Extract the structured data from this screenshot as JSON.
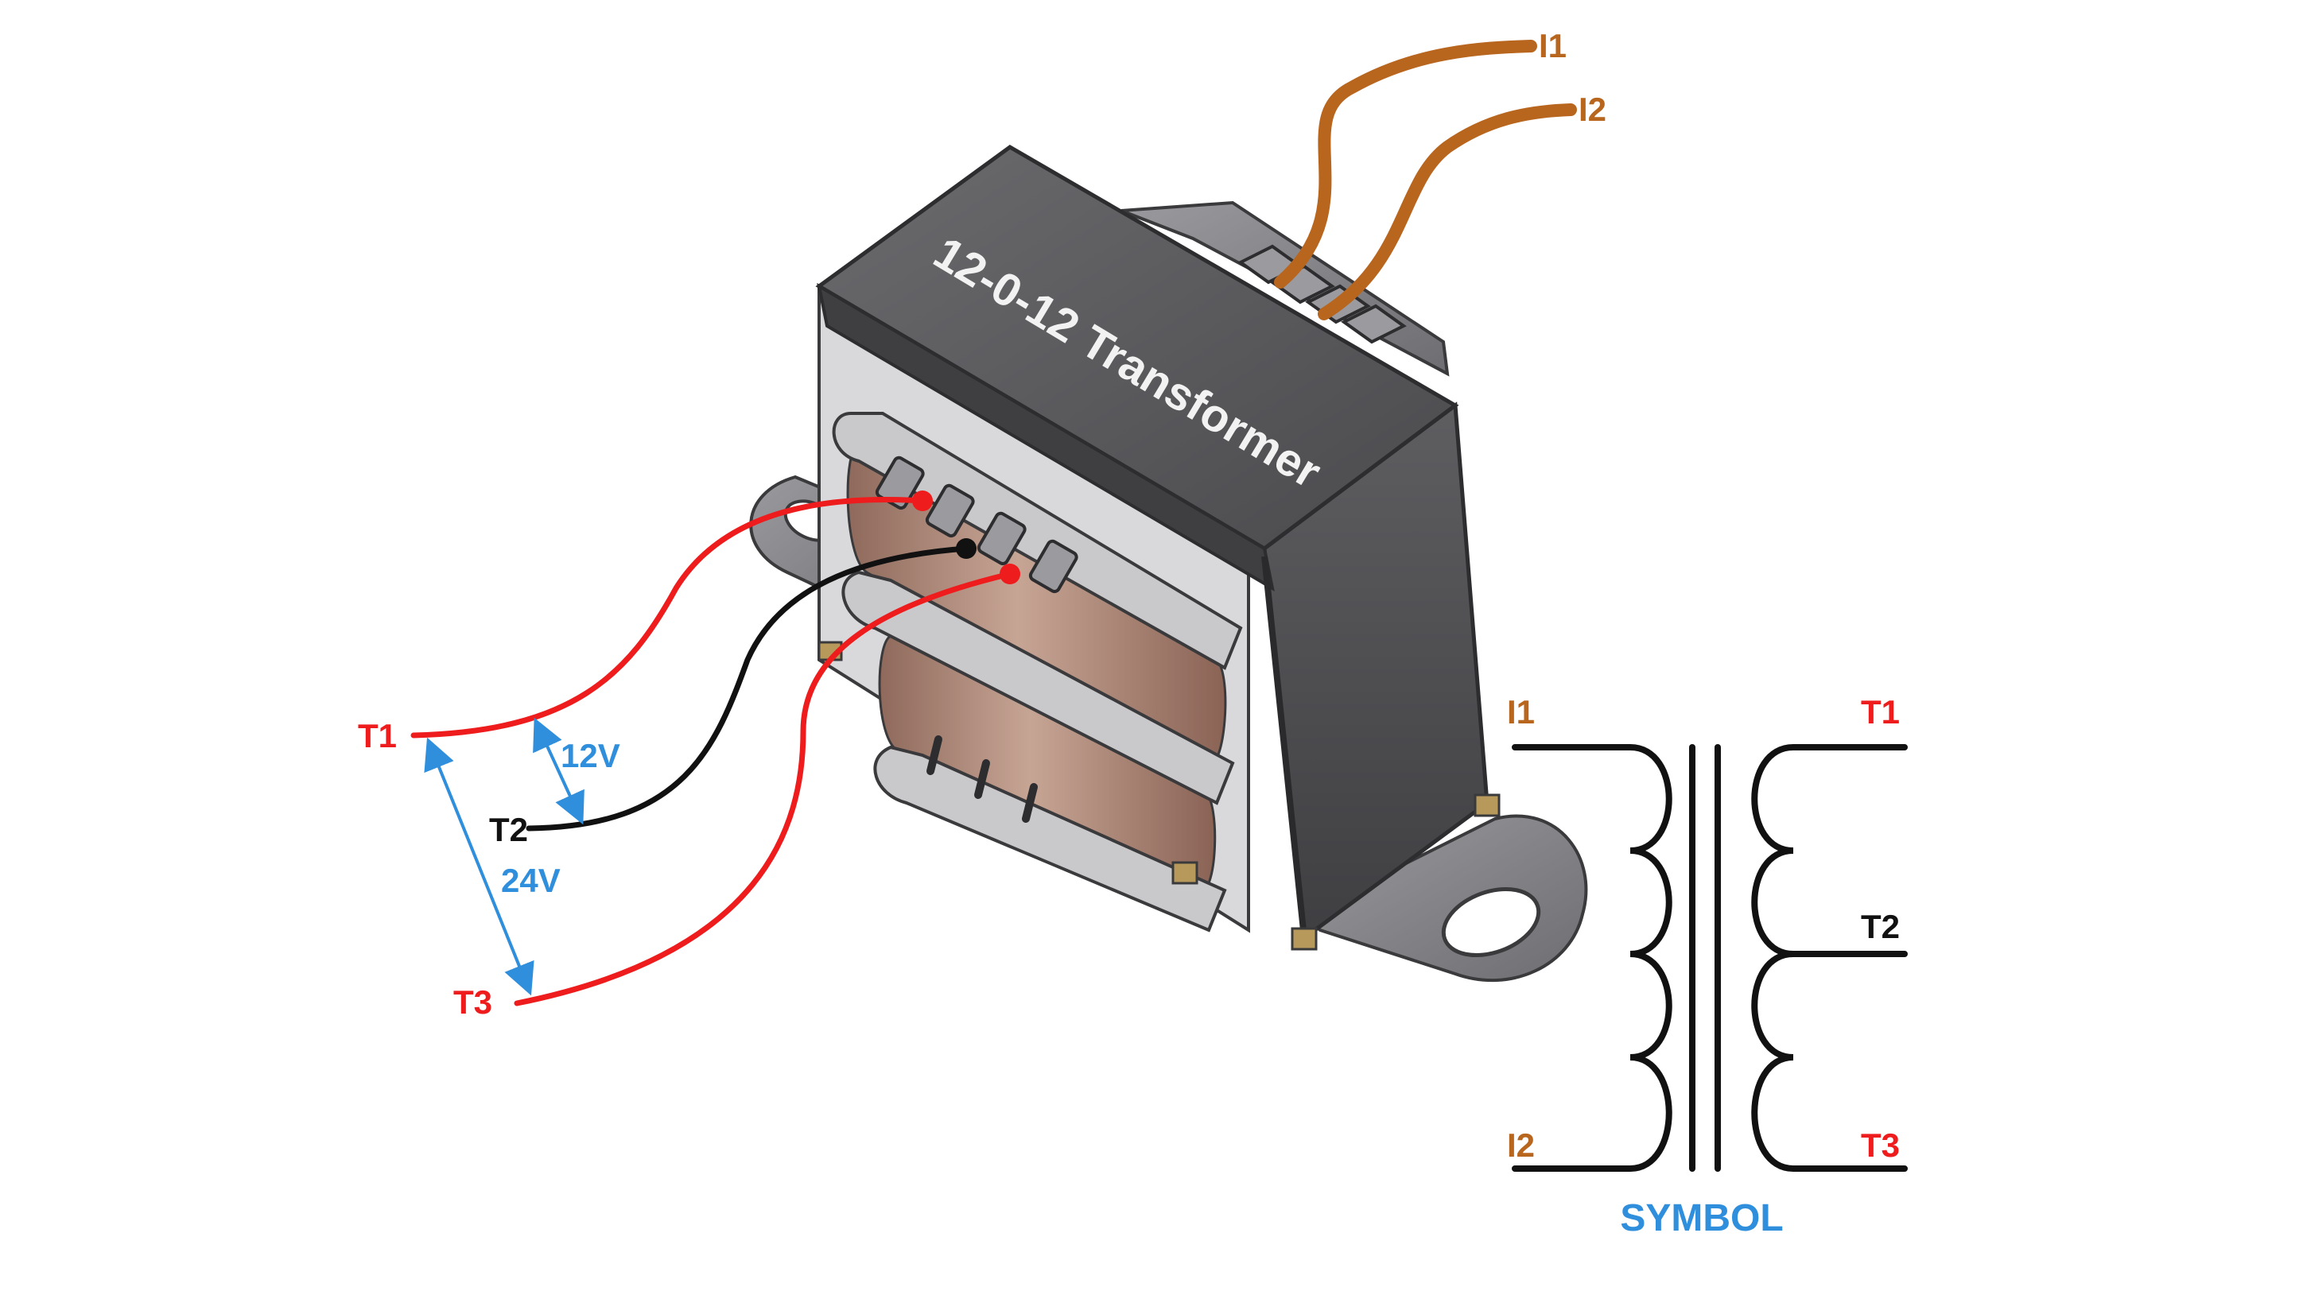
{
  "transformer": {
    "body_title": "12-0-12 Transformer"
  },
  "wires": {
    "input": [
      "I1",
      "I2"
    ],
    "output": [
      "T1",
      "T2",
      "T3"
    ]
  },
  "voltages": {
    "half": "12V",
    "full": "24V"
  },
  "symbol": {
    "caption": "SYMBOL",
    "left_top": "I1",
    "left_bottom": "I2",
    "right_top": "T1",
    "right_mid": "T2",
    "right_bottom": "T3"
  },
  "colors": {
    "input_wire": "#b8651e",
    "red_wire": "#ee1c1c",
    "black_wire": "#111111",
    "dimension_arrow": "#2f8fdc",
    "body_dark": "#555558",
    "bracket": "#8a8a8e",
    "coil": "#b08a78"
  }
}
